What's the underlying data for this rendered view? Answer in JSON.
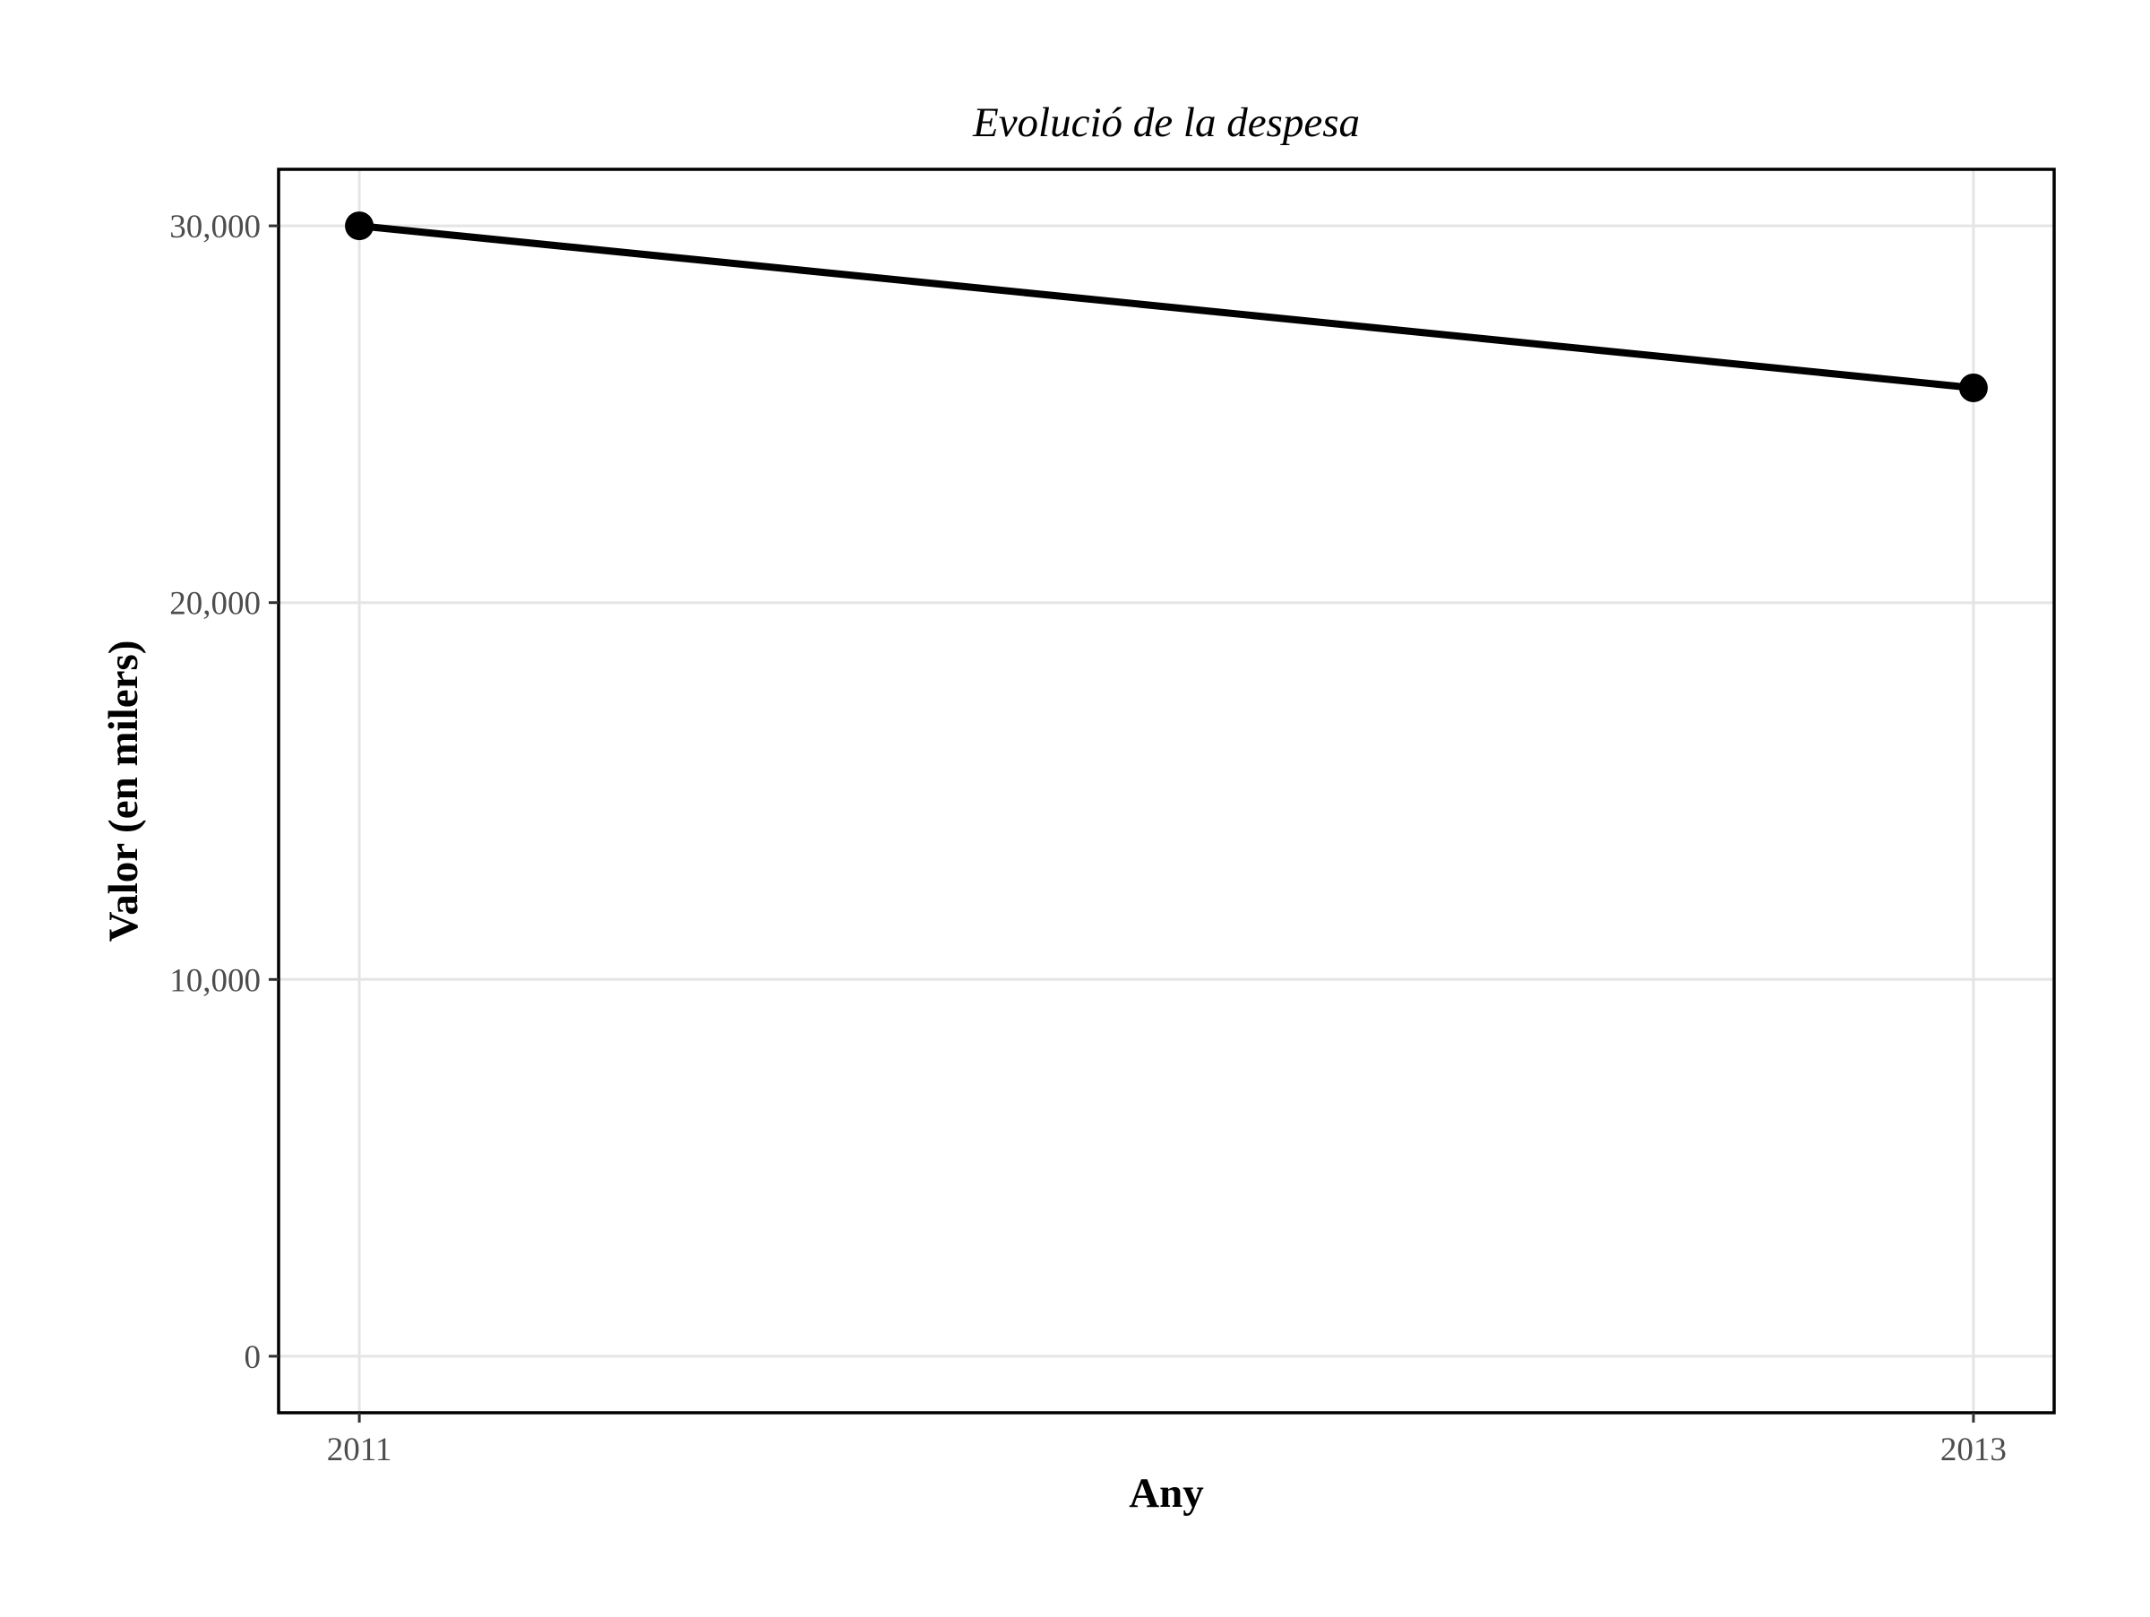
{
  "chart_data": {
    "type": "line",
    "title": "Evolució de la despesa",
    "xlabel": "Any",
    "ylabel": "Valor (en milers)",
    "x": [
      2011,
      2013
    ],
    "xticks": [
      "2011",
      "2013"
    ],
    "xlim": [
      2010.9,
      2013.1
    ],
    "series": [
      {
        "values": [
          30000,
          25700
        ]
      }
    ],
    "yticks": [
      0,
      10000,
      20000,
      30000
    ],
    "ytick_labels": [
      "0",
      "10,000",
      "20,000",
      "30,000"
    ],
    "ylim": [
      -1500,
      31500
    ],
    "grid": true,
    "legend": "none"
  },
  "colors": {
    "line": "#000000",
    "point": "#000000",
    "grid": "#e5e5e5",
    "panel_border": "#000000",
    "tick_label": "#4d4d4d"
  }
}
